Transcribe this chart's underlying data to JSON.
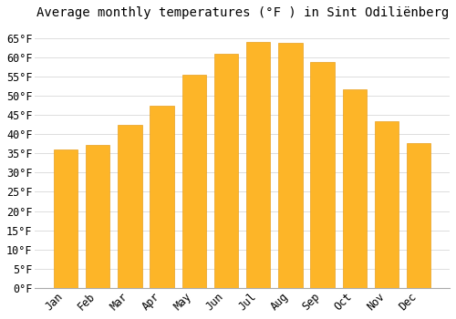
{
  "title": "Average monthly temperatures (°F ) in Sint Odiliënberg",
  "months": [
    "Jan",
    "Feb",
    "Mar",
    "Apr",
    "May",
    "Jun",
    "Jul",
    "Aug",
    "Sep",
    "Oct",
    "Nov",
    "Dec"
  ],
  "values": [
    36.0,
    37.2,
    42.4,
    47.5,
    55.4,
    60.8,
    63.9,
    63.7,
    58.8,
    51.6,
    43.3,
    37.6
  ],
  "bar_color": "#FDB528",
  "bar_edge_color": "#E8A020",
  "ylim": [
    0,
    68
  ],
  "yticks": [
    0,
    5,
    10,
    15,
    20,
    25,
    30,
    35,
    40,
    45,
    50,
    55,
    60,
    65
  ],
  "ytick_labels": [
    "0°F",
    "5°F",
    "10°F",
    "15°F",
    "20°F",
    "25°F",
    "30°F",
    "35°F",
    "40°F",
    "45°F",
    "50°F",
    "55°F",
    "60°F",
    "65°F"
  ],
  "background_color": "#ffffff",
  "grid_color": "#dddddd",
  "title_fontsize": 10,
  "tick_fontsize": 8.5,
  "font_family": "monospace",
  "bar_width": 0.75
}
